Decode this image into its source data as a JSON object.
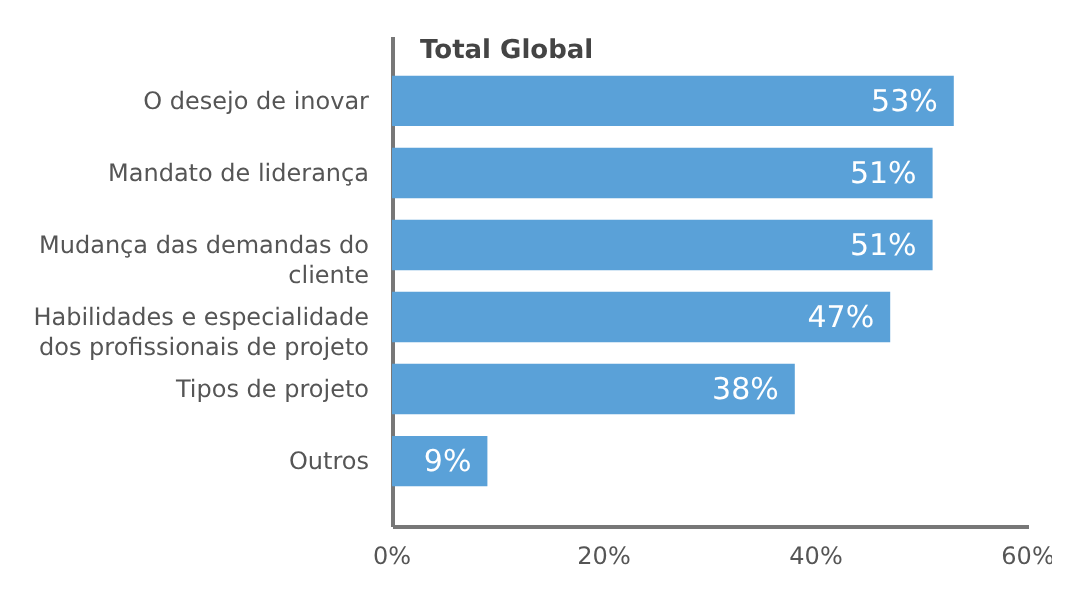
{
  "chart_data": {
    "type": "bar",
    "orientation": "horizontal",
    "title": "Total Global",
    "categories": [
      "O desejo de inovar",
      "Mandato de liderança",
      "Mudança das demandas do\ncliente",
      "Habilidades e especialidade\ndos profissionais de projeto",
      "Tipos de projeto",
      "Outros"
    ],
    "values": [
      53,
      51,
      51,
      47,
      38,
      9
    ],
    "color": "#5aa1d8",
    "xlim": [
      0,
      60
    ],
    "xticks": [
      {
        "value": 0,
        "label": "0%"
      },
      {
        "value": 20,
        "label": "20%"
      },
      {
        "value": 40,
        "label": "40%"
      },
      {
        "value": 60,
        "label": "60%"
      }
    ],
    "value_labels": [
      "53%",
      "51%",
      "51%",
      "47%",
      "38%",
      "9%"
    ],
    "grid": false
  }
}
